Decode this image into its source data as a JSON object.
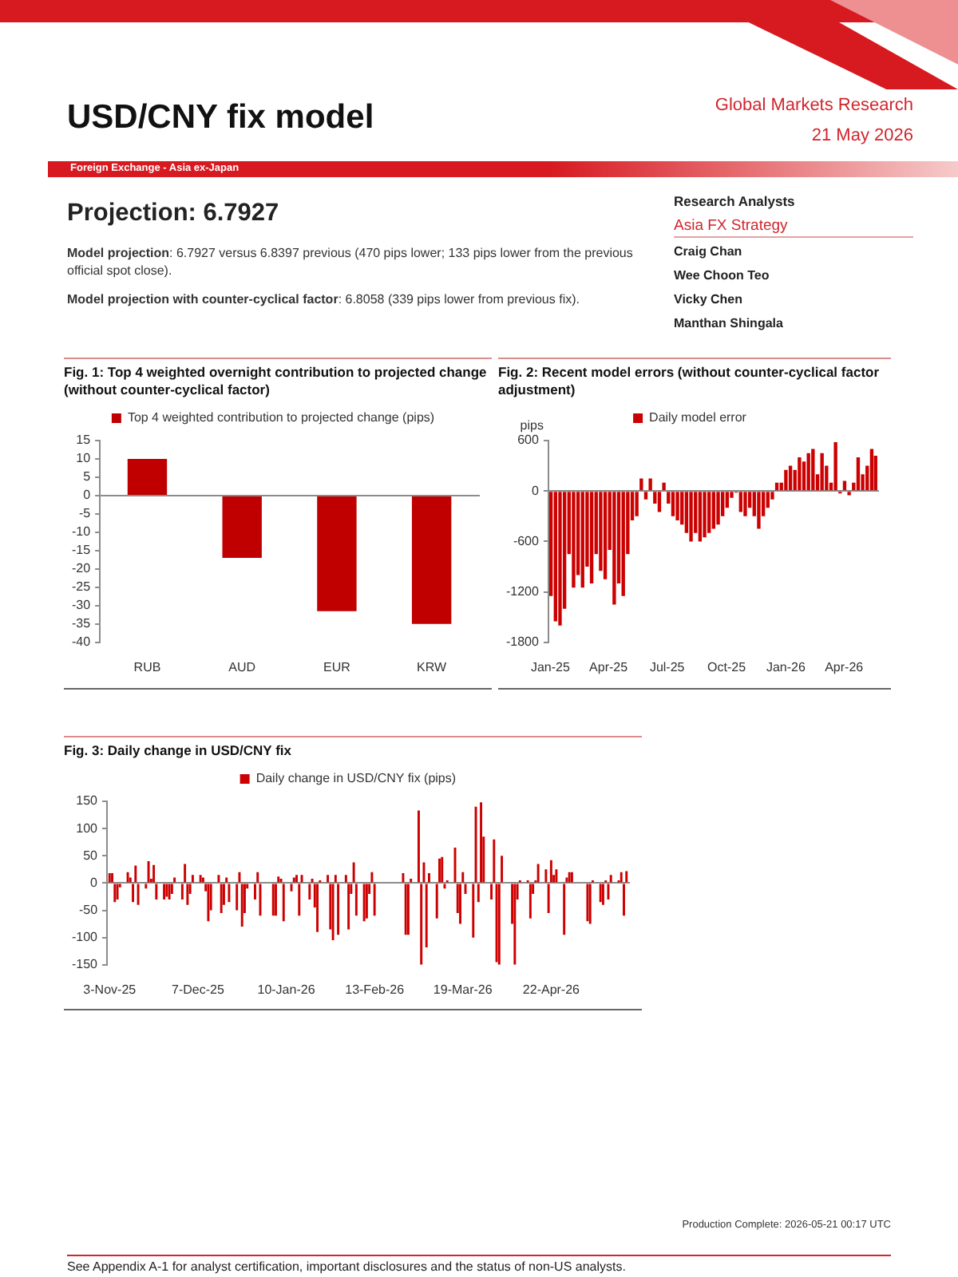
{
  "chart_data": [
    {
      "type": "other",
      "title": "USD/CNY fix model",
      "subtitle": "Foreign Exchange - Asia ex-Japan",
      "annotations": [
        "Global Markets Research",
        "21 May 2026",
        "Projection: 6.7927",
        "Model projection: 6.7927 versus 6.8397 previous (470 pips lower; 133 pips lower from the previous official spot close).",
        "Model projection with counter-cyclical factor: 6.8058 (339 pips lower from previous fix).",
        "Research Analysts",
        "Asia FX Strategy",
        "Craig Chan",
        "Wee Choon Teo",
        "Vicky Chen",
        "Manthan Shingala"
      ]
    },
    {
      "type": "bar",
      "title": "Fig. 1: Top 4 weighted overnight contribution to projected change (without counter-cyclical factor)",
      "categories": [
        "RUB",
        "AUD",
        "EUR",
        "KRW"
      ],
      "series": [
        {
          "name": "Top 4 weighted contribution to projected change (pips)",
          "color": "#c00000",
          "values": [
            10,
            -17,
            -31.5,
            -35
          ]
        }
      ],
      "ylim": [
        -40,
        15
      ],
      "yticks": [
        -40,
        -35,
        -30,
        -25,
        -20,
        -15,
        -10,
        -5,
        0,
        5,
        10,
        15
      ],
      "legend": "top"
    },
    {
      "type": "bar",
      "title": "Fig. 2: Recent model errors (without counter-cyclical factor adjustment)",
      "ylabel": "pips",
      "x": [
        "2025-01-02",
        "2025-01-09",
        "2025-01-16",
        "2025-01-23",
        "2025-01-30",
        "2025-02-06",
        "2025-02-13",
        "2025-02-20",
        "2025-02-27",
        "2025-03-06",
        "2025-03-13",
        "2025-03-20",
        "2025-03-27",
        "2025-04-03",
        "2025-04-10",
        "2025-04-17",
        "2025-04-24",
        "2025-05-01",
        "2025-05-08",
        "2025-05-15",
        "2025-05-22",
        "2025-05-29",
        "2025-06-05",
        "2025-06-12",
        "2025-06-19",
        "2025-06-26",
        "2025-07-03",
        "2025-07-10",
        "2025-07-17",
        "2025-07-24",
        "2025-07-31",
        "2025-08-07",
        "2025-08-14",
        "2025-08-21",
        "2025-08-28",
        "2025-09-04",
        "2025-09-11",
        "2025-09-18",
        "2025-09-25",
        "2025-10-02",
        "2025-10-09",
        "2025-10-16",
        "2025-10-23",
        "2025-10-30",
        "2025-11-06",
        "2025-11-13",
        "2025-11-20",
        "2025-11-27",
        "2025-12-04",
        "2025-12-11",
        "2025-12-18",
        "2025-12-25",
        "2026-01-01",
        "2026-01-08",
        "2026-01-15",
        "2026-01-22",
        "2026-01-29",
        "2026-02-05",
        "2026-02-12",
        "2026-02-19",
        "2026-02-26",
        "2026-03-05",
        "2026-03-12",
        "2026-03-19",
        "2026-03-26",
        "2026-04-02",
        "2026-04-09",
        "2026-04-16",
        "2026-04-23",
        "2026-04-30",
        "2026-05-07",
        "2026-05-14",
        "2026-05-20"
      ],
      "series": [
        {
          "name": "Daily model error",
          "color": "#cc0000",
          "values": [
            -1250,
            -1550,
            -1600,
            -1400,
            -750,
            -1150,
            -1000,
            -1150,
            -900,
            -1100,
            -750,
            -950,
            -1050,
            -700,
            -1350,
            -1100,
            -1250,
            -750,
            -350,
            -300,
            150,
            -100,
            150,
            -150,
            -250,
            100,
            -150,
            -300,
            -350,
            -400,
            -500,
            -600,
            -500,
            -600,
            -550,
            -500,
            -450,
            -400,
            -300,
            -200,
            -80,
            -20,
            -250,
            -300,
            -200,
            -300,
            -450,
            -300,
            -200,
            -100,
            100,
            100,
            250,
            300,
            250,
            400,
            350,
            450,
            500,
            200,
            450,
            300,
            100,
            580,
            -30,
            120,
            -50,
            100,
            400,
            200,
            300,
            500,
            420
          ]
        }
      ],
      "xlim": [
        "2024-12-29",
        "2026-05-24"
      ],
      "xticks": [
        {
          "value": "2025-01-01",
          "label": "Jan-25"
        },
        {
          "value": "2025-04-01",
          "label": "Apr-25"
        },
        {
          "value": "2025-07-01",
          "label": "Jul-25"
        },
        {
          "value": "2025-10-01",
          "label": "Oct-25"
        },
        {
          "value": "2026-01-01",
          "label": "Jan-26"
        },
        {
          "value": "2026-04-01",
          "label": "Apr-26"
        }
      ],
      "ylim": [
        -1800,
        600
      ],
      "yticks": [
        -1800,
        -1200,
        -600,
        0,
        600
      ],
      "legend": "top"
    },
    {
      "type": "bar",
      "title": "Fig. 3: Daily change in USD/CNY fix",
      "x": [
        "2025-11-03",
        "2025-11-04",
        "2025-11-05",
        "2025-11-06",
        "2025-11-07",
        "2025-11-10",
        "2025-11-11",
        "2025-11-12",
        "2025-11-13",
        "2025-11-14",
        "2025-11-17",
        "2025-11-18",
        "2025-11-19",
        "2025-11-20",
        "2025-11-21",
        "2025-11-24",
        "2025-11-25",
        "2025-11-26",
        "2025-11-27",
        "2025-11-28",
        "2025-12-01",
        "2025-12-02",
        "2025-12-03",
        "2025-12-04",
        "2025-12-05",
        "2025-12-08",
        "2025-12-09",
        "2025-12-10",
        "2025-12-11",
        "2025-12-12",
        "2025-12-15",
        "2025-12-16",
        "2025-12-17",
        "2025-12-18",
        "2025-12-19",
        "2025-12-22",
        "2025-12-23",
        "2025-12-24",
        "2025-12-25",
        "2025-12-26",
        "2025-12-29",
        "2025-12-30",
        "2025-12-31",
        "2026-01-05",
        "2026-01-06",
        "2026-01-07",
        "2026-01-08",
        "2026-01-09",
        "2026-01-12",
        "2026-01-13",
        "2026-01-14",
        "2026-01-15",
        "2026-01-16",
        "2026-01-19",
        "2026-01-20",
        "2026-01-21",
        "2026-01-22",
        "2026-01-23",
        "2026-01-26",
        "2026-01-27",
        "2026-01-28",
        "2026-01-29",
        "2026-01-30",
        "2026-02-02",
        "2026-02-03",
        "2026-02-04",
        "2026-02-05",
        "2026-02-06",
        "2026-02-09",
        "2026-02-10",
        "2026-02-11",
        "2026-02-12",
        "2026-02-13",
        "2026-02-24",
        "2026-02-25",
        "2026-02-26",
        "2026-02-27",
        "2026-03-02",
        "2026-03-03",
        "2026-03-04",
        "2026-03-05",
        "2026-03-06",
        "2026-03-09",
        "2026-03-10",
        "2026-03-11",
        "2026-03-12",
        "2026-03-13",
        "2026-03-16",
        "2026-03-17",
        "2026-03-18",
        "2026-03-19",
        "2026-03-20",
        "2026-03-23",
        "2026-03-24",
        "2026-03-25",
        "2026-03-26",
        "2026-03-27",
        "2026-03-30",
        "2026-03-31",
        "2026-04-01",
        "2026-04-02",
        "2026-04-03",
        "2026-04-07",
        "2026-04-08",
        "2026-04-09",
        "2026-04-10",
        "2026-04-13",
        "2026-04-14",
        "2026-04-15",
        "2026-04-16",
        "2026-04-17",
        "2026-04-20",
        "2026-04-21",
        "2026-04-22",
        "2026-04-23",
        "2026-04-24",
        "2026-04-27",
        "2026-04-28",
        "2026-04-29",
        "2026-04-30",
        "2026-05-06",
        "2026-05-07",
        "2026-05-08",
        "2026-05-11",
        "2026-05-12",
        "2026-05-13",
        "2026-05-14",
        "2026-05-15",
        "2026-05-18",
        "2026-05-19",
        "2026-05-20",
        "2026-05-21"
      ],
      "series": [
        {
          "name": "Daily change in USD/CNY fix (pips)",
          "color": "#cc0000",
          "values": [
            18,
            18,
            -35,
            -30,
            -8,
            20,
            10,
            -35,
            32,
            -40,
            -10,
            40,
            8,
            33,
            -30,
            -30,
            -25,
            -30,
            -20,
            10,
            -30,
            35,
            -40,
            -20,
            15,
            15,
            10,
            -15,
            -70,
            -50,
            15,
            -55,
            -40,
            10,
            -35,
            -50,
            20,
            -80,
            -55,
            -10,
            -30,
            20,
            -60,
            -60,
            -60,
            12,
            8,
            -70,
            -15,
            10,
            15,
            -60,
            15,
            -30,
            8,
            -45,
            -90,
            5,
            15,
            -85,
            -105,
            15,
            -95,
            15,
            -85,
            -20,
            38,
            -60,
            -70,
            -65,
            -20,
            20,
            -60,
            18,
            -95,
            -95,
            8,
            133,
            -150,
            38,
            -118,
            18,
            -65,
            45,
            48,
            -10,
            5,
            65,
            -55,
            -75,
            20,
            -20,
            -100,
            140,
            -35,
            148,
            85,
            -30,
            80,
            -145,
            -150,
            50,
            -75,
            -150,
            -30,
            5,
            5,
            -65,
            -20,
            5,
            35,
            25,
            -55,
            42,
            15,
            25,
            -95,
            10,
            20,
            20,
            -70,
            -75,
            5,
            -35,
            -40,
            5,
            -30,
            15,
            5,
            20,
            -60,
            22
          ]
        }
      ],
      "xlim": [
        "2025-11-02",
        "2026-05-22"
      ],
      "xticks": [
        {
          "value": "2025-11-03",
          "label": "3-Nov-25"
        },
        {
          "value": "2025-12-07",
          "label": "7-Dec-25"
        },
        {
          "value": "2026-01-10",
          "label": "10-Jan-26"
        },
        {
          "value": "2026-02-13",
          "label": "13-Feb-26"
        },
        {
          "value": "2026-03-19",
          "label": "19-Mar-26"
        },
        {
          "value": "2026-04-22",
          "label": "22-Apr-26"
        }
      ],
      "ylim": [
        -150,
        150
      ],
      "yticks": [
        -150,
        -100,
        -50,
        0,
        50,
        100,
        150
      ],
      "legend": "top"
    },
    {
      "type": "other",
      "annotations": [
        "Production Complete: 2026-05-21 00:17 UTC",
        "See Appendix A-1 for analyst certification, important disclosures and the status of non-US analysts."
      ]
    }
  ]
}
